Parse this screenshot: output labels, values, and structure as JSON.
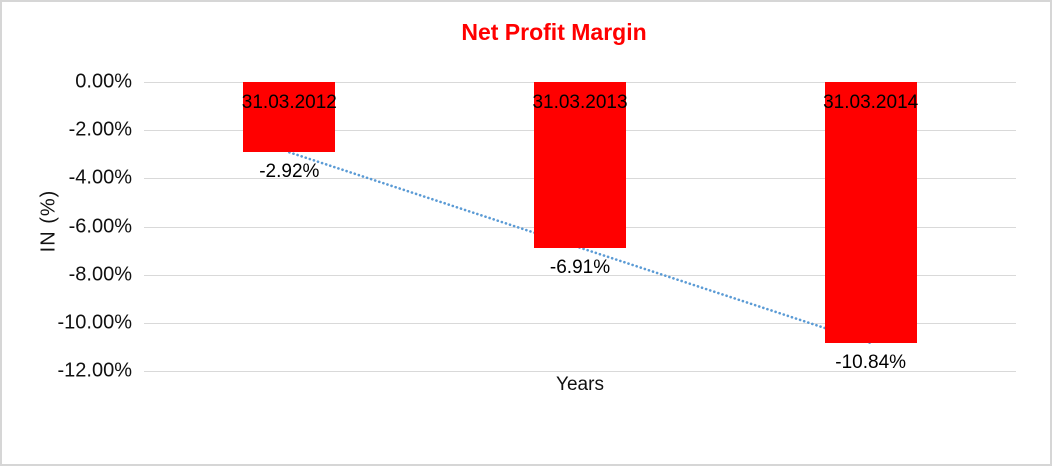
{
  "chart_data": {
    "type": "bar",
    "title": "Net Profit Margin",
    "title_color": "#ff0000",
    "xlabel": "Years",
    "ylabel": "IN (%)",
    "categories": [
      "31.03.2012",
      "31.03.2013",
      "31.03.2014"
    ],
    "values": [
      -2.92,
      -6.91,
      -10.84
    ],
    "value_labels": [
      "-2.92%",
      "-6.91%",
      "-10.84%"
    ],
    "bar_color": "#ff0000",
    "label_color": "#000000",
    "ylim": [
      -12,
      0
    ],
    "ytick_values": [
      0,
      -2,
      -4,
      -6,
      -8,
      -10,
      -12
    ],
    "yticks": [
      "0.00%",
      "-2.00%",
      "-4.00%",
      "-6.00%",
      "-8.00%",
      "-10.00%",
      "-12.00%"
    ],
    "grid": true,
    "gridline_color": "#d9d9d9",
    "legend": "none",
    "trendline": {
      "style": "dotted",
      "color": "#5b9bd5",
      "from_category": "31.03.2012",
      "to_category": "31.03.2014"
    },
    "frame_border_color": "#d6d6d6"
  }
}
